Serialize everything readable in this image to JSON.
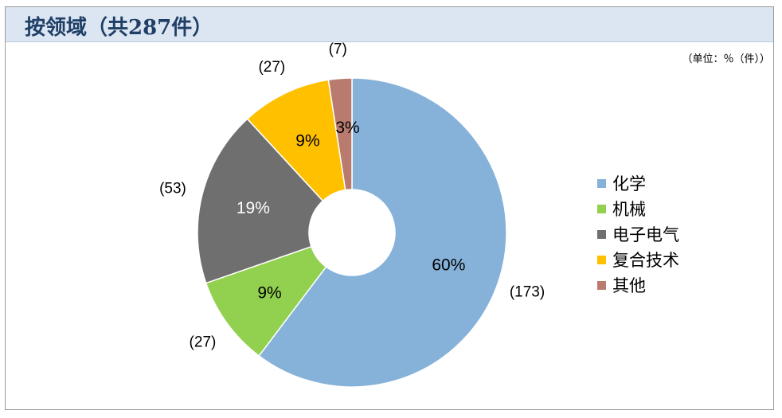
{
  "header": {
    "title": "按领域（共287件）",
    "unit": "（单位：％（件））"
  },
  "chart_data": {
    "type": "pie",
    "style": "donut",
    "title": "按领域（共287件）",
    "categories": [
      "化学",
      "机械",
      "电子电气",
      "复合技术",
      "其他"
    ],
    "values": [
      173,
      27,
      53,
      27,
      7
    ],
    "percent_labels": [
      "60%",
      "9%",
      "19%",
      "9%",
      "3%"
    ],
    "count_labels": [
      "(173)",
      "(27)",
      "(53)",
      "(27)",
      "(7)"
    ],
    "colors": [
      "#86b2d9",
      "#92d050",
      "#6f6f6f",
      "#ffc000",
      "#b87b6e"
    ],
    "legend_position": "right",
    "start_angle": "top",
    "direction": "clockwise"
  }
}
